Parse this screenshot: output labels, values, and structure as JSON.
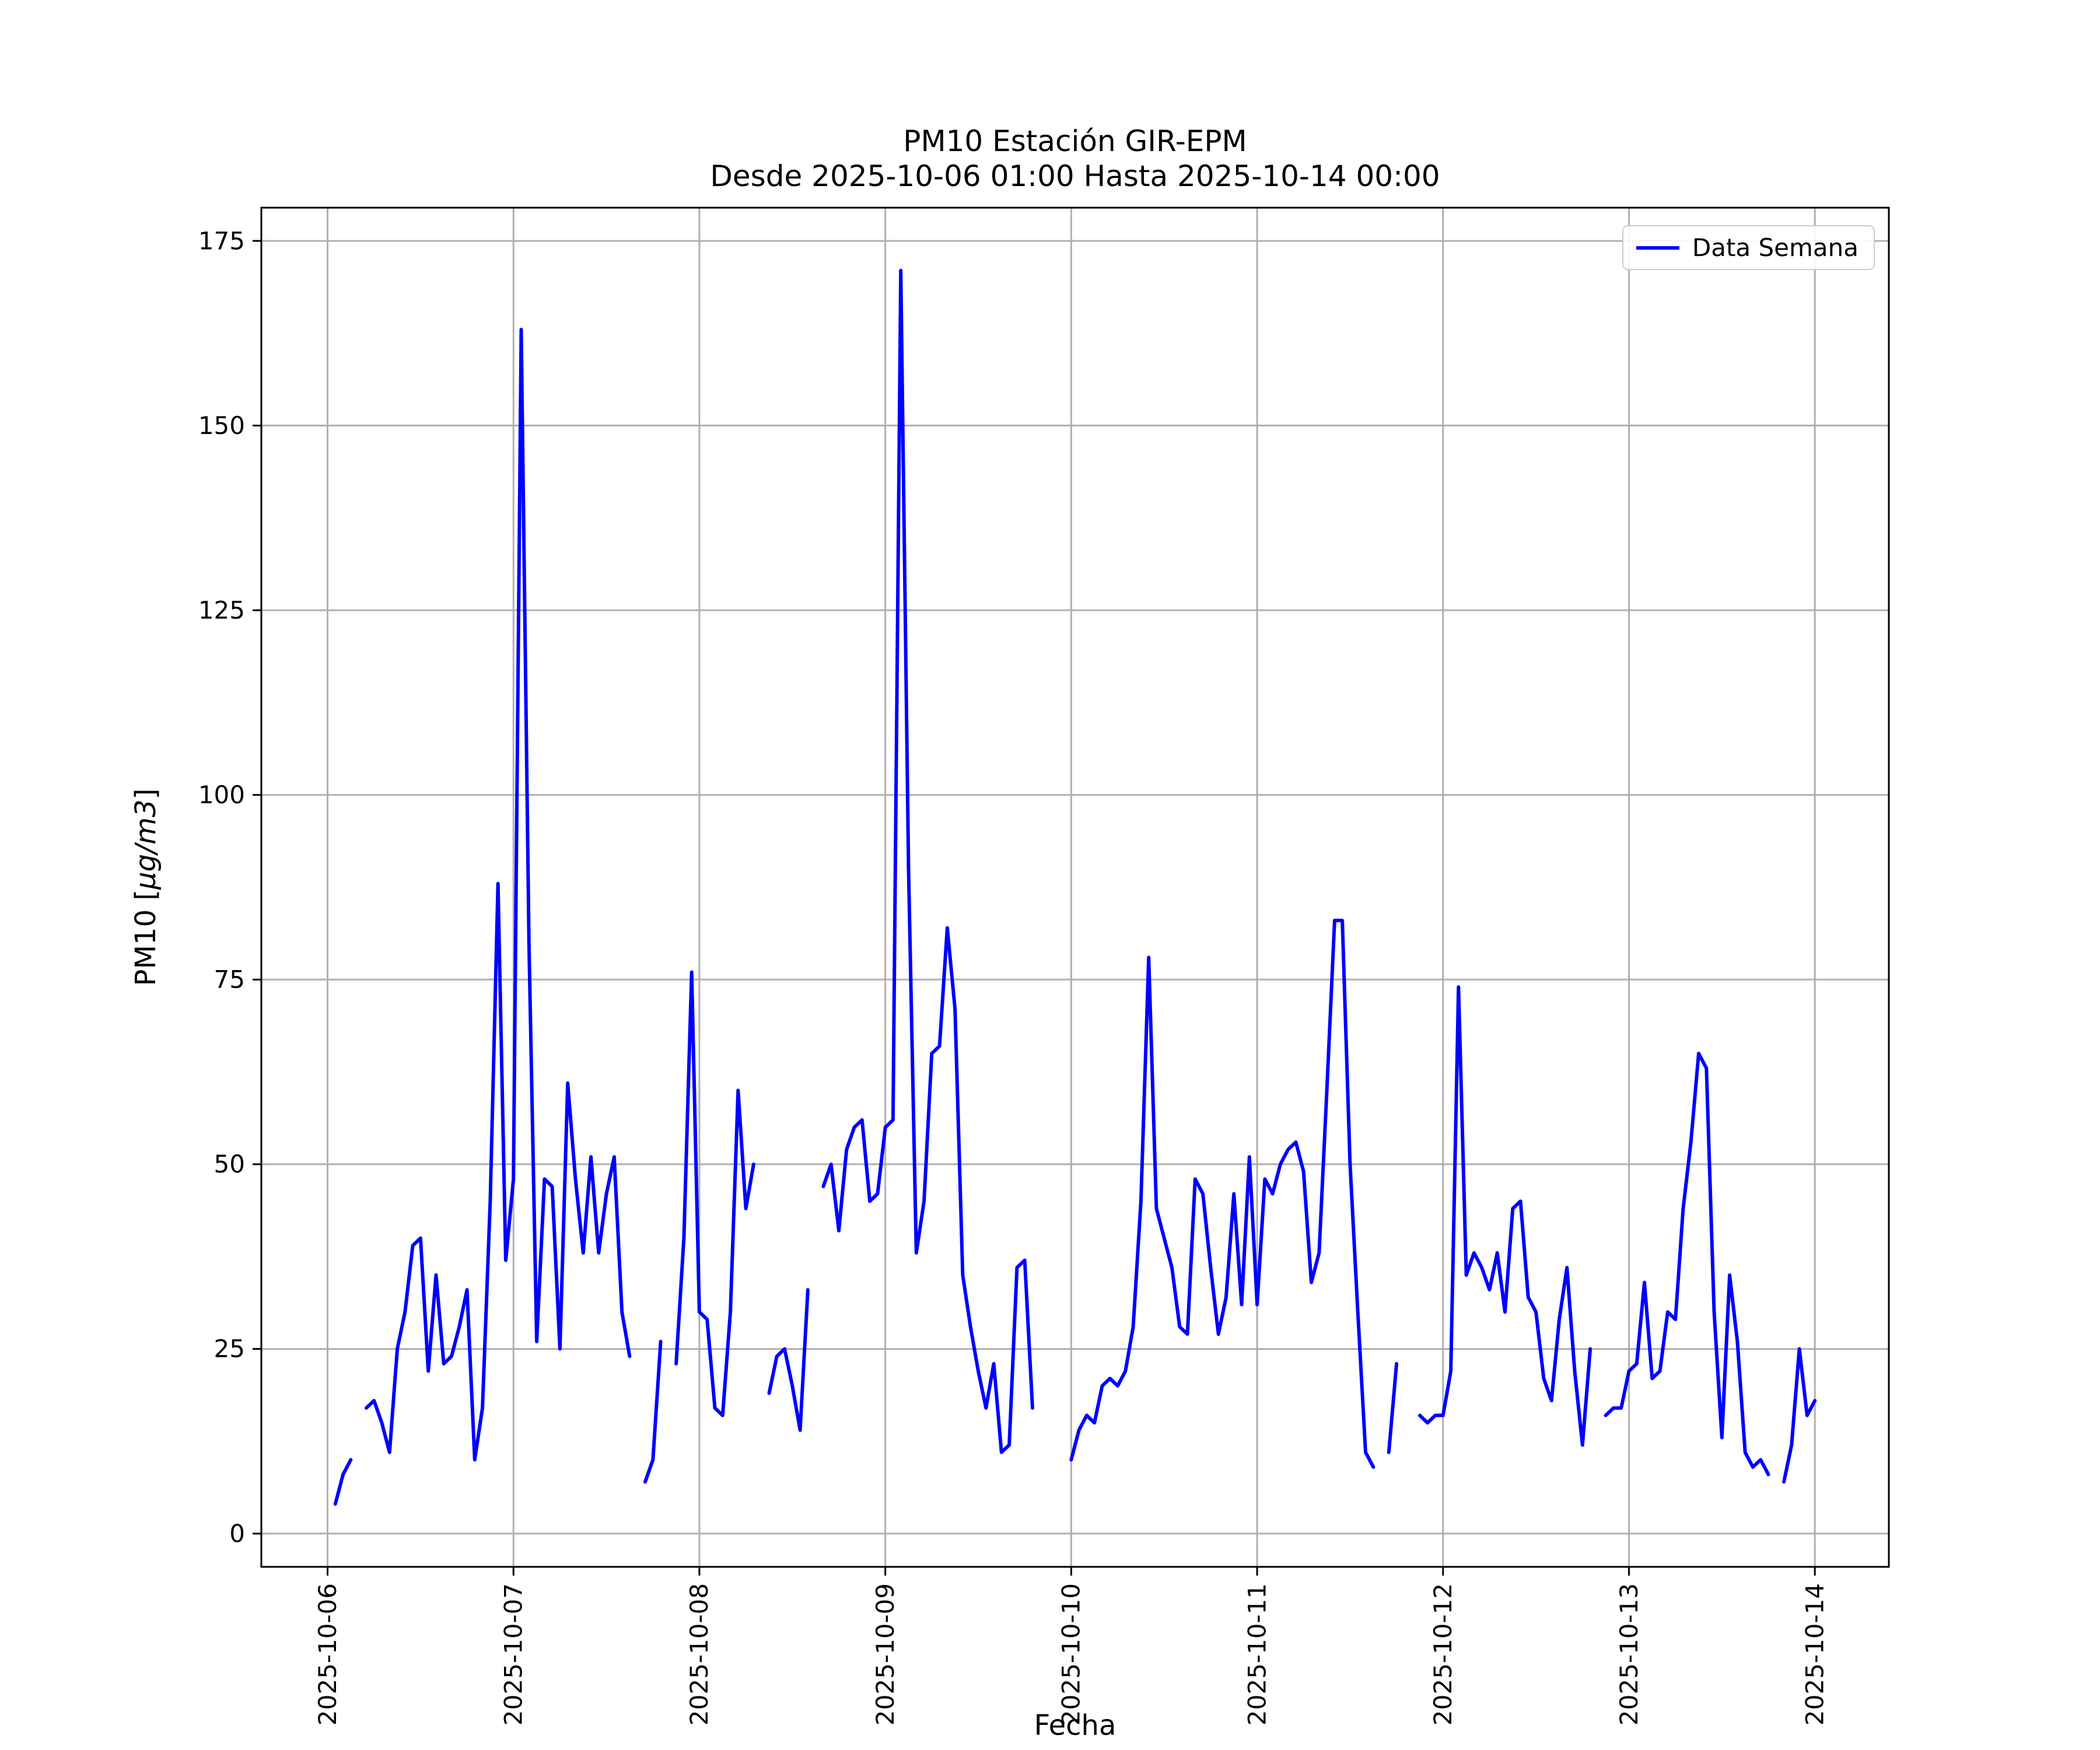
{
  "figure": {
    "background": "#ffffff",
    "text_color": "#000000",
    "grid_color": "#b0b0b0"
  },
  "title": {
    "line1": "PM10 Estación GIR-EPM",
    "line2": "Desde 2025-10-06 01:00 Hasta 2025-10-14 00:00"
  },
  "axes": {
    "xlabel": "Fecha",
    "ylabel_prefix": "PM10 [",
    "ylabel_math": "μg/m3",
    "ylabel_suffix": "]"
  },
  "legend": {
    "label": "Data Semana",
    "color": "#0000ff",
    "position": "upper-right"
  },
  "chart_data": {
    "type": "line",
    "title": "PM10 Estación GIR-EPM",
    "subtitle": "Desde 2025-10-06 01:00 Hasta 2025-10-14 00:00",
    "xlabel": "Fecha",
    "ylabel": "PM10 [μg/m3]",
    "grid": true,
    "legend_position": "upper-right",
    "x_start": "2025-10-06 01:00",
    "x_step_hours": 1,
    "x_tick_hours": [
      0,
      24,
      48,
      72,
      96,
      120,
      144,
      168,
      192
    ],
    "x_tick_labels": [
      "2025-10-06",
      "2025-10-07",
      "2025-10-08",
      "2025-10-09",
      "2025-10-10",
      "2025-10-11",
      "2025-10-12",
      "2025-10-13",
      "2025-10-14"
    ],
    "y_ticks": [
      0,
      25,
      50,
      75,
      100,
      125,
      150,
      175
    ],
    "xlim_hours": [
      -8.55,
      201.55
    ],
    "ylim": [
      -4.5,
      179.5
    ],
    "series": [
      {
        "name": "Data Semana",
        "color": "#0000ff",
        "start_hour": 1,
        "values": [
          4,
          8,
          10,
          null,
          17,
          18,
          15,
          11,
          25,
          30,
          39,
          40,
          22,
          35,
          23,
          24,
          28,
          33,
          10,
          17,
          45,
          88,
          37,
          48,
          163,
          80,
          26,
          48,
          47,
          25,
          61,
          48,
          38,
          51,
          38,
          46,
          51,
          30,
          24,
          null,
          7,
          10,
          26,
          null,
          23,
          40,
          76,
          30,
          29,
          17,
          16,
          30,
          60,
          44,
          50,
          null,
          19,
          24,
          25,
          20,
          14,
          33,
          null,
          47,
          50,
          41,
          52,
          55,
          56,
          45,
          46,
          55,
          56,
          171,
          90,
          38,
          45,
          65,
          66,
          82,
          71,
          35,
          28,
          22,
          17,
          23,
          11,
          12,
          36,
          37,
          17,
          null,
          null,
          null,
          null,
          10,
          14,
          16,
          15,
          20,
          21,
          20,
          22,
          28,
          45,
          78,
          44,
          40,
          36,
          28,
          27,
          48,
          46,
          36,
          27,
          32,
          46,
          31,
          51,
          31,
          48,
          46,
          50,
          52,
          53,
          49,
          34,
          38,
          60,
          83,
          83,
          50,
          30,
          11,
          9,
          null,
          11,
          23,
          null,
          null,
          16,
          15,
          16,
          16,
          22,
          74,
          35,
          38,
          36,
          33,
          38,
          30,
          44,
          45,
          32,
          30,
          21,
          18,
          29,
          36,
          22,
          12,
          25,
          null,
          16,
          17,
          17,
          22,
          23,
          34,
          21,
          22,
          30,
          29,
          44,
          53,
          65,
          63,
          30,
          13,
          35,
          26,
          11,
          9,
          10,
          8,
          null,
          7,
          12,
          25,
          16,
          18
        ]
      }
    ]
  }
}
